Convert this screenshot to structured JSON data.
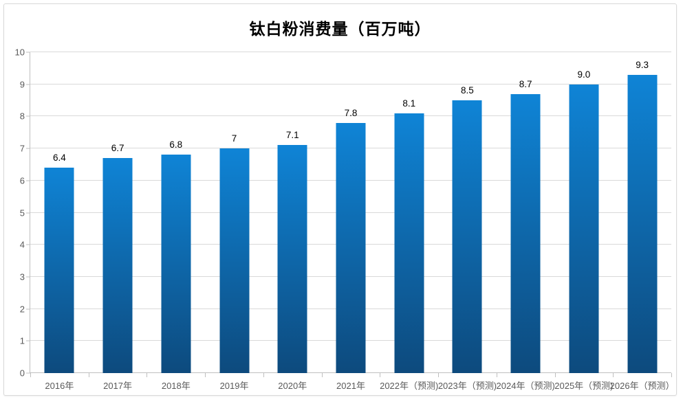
{
  "chart_data": {
    "type": "bar",
    "title": "钛白粉消费量（百万吨）",
    "categories": [
      "2016年",
      "2017年",
      "2018年",
      "2019年",
      "2020年",
      "2021年",
      "2022年（预测)",
      "2023年（预测)",
      "2024年（预测)",
      "2025年（预测)",
      "2026年（预测）"
    ],
    "values": [
      6.4,
      6.7,
      6.8,
      7,
      7.1,
      7.8,
      8.1,
      8.5,
      8.7,
      9.0,
      9.3
    ],
    "value_labels": [
      "6.4",
      "6.7",
      "6.8",
      "7",
      "7.1",
      "7.8",
      "8.1",
      "8.5",
      "8.7",
      "9.0",
      "9.3"
    ],
    "xlabel": "",
    "ylabel": "",
    "ylim": [
      0,
      10
    ],
    "yticks": [
      "0",
      "1",
      "2",
      "3",
      "4",
      "5",
      "6",
      "7",
      "8",
      "9",
      "10"
    ],
    "grid": "horizontal-on",
    "legend": "none",
    "forecast_note": "预测",
    "colors": {
      "bar_top": "#0f84d6",
      "bar_bottom": "#0d4a7d",
      "grid": "#d9d9d9",
      "axis": "#bfbfbf",
      "tick_label": "#595959",
      "value_label": "#000000",
      "title": "#000000",
      "frame_border": "#d9d9d9"
    }
  }
}
